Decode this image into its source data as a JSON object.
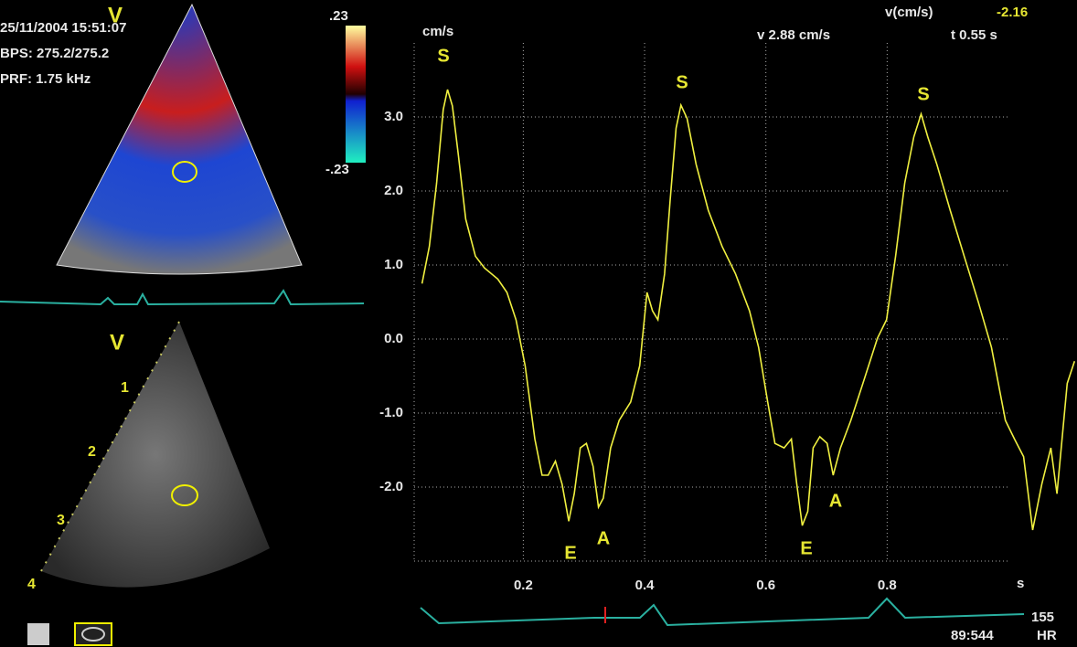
{
  "header": {
    "date": "25/11/2004 15:51:07",
    "bps": "BPS: 275.2/275.2",
    "prf": "PRF: 1.75 kHz",
    "view_top": "V",
    "scale_max": ".23",
    "scale_min": "-.23",
    "view_bottom": "V",
    "depth_labels": [
      "1",
      "2",
      "3",
      "4"
    ]
  },
  "readout": {
    "v_label": "v(cm/s)",
    "v_value": "-2.16",
    "v": "v 2.88 cm/s",
    "t": "t 0.55 s"
  },
  "chart_data": {
    "type": "line",
    "y_label": "cm/s",
    "x_label": "s",
    "x": [
      0.033,
      0.045,
      0.057,
      0.068,
      0.075,
      0.083,
      0.093,
      0.105,
      0.121,
      0.136,
      0.158,
      0.173,
      0.188,
      0.203,
      0.219,
      0.231,
      0.241,
      0.253,
      0.264,
      0.275,
      0.284,
      0.294,
      0.304,
      0.315,
      0.324,
      0.332,
      0.344,
      0.358,
      0.377,
      0.392,
      0.404,
      0.413,
      0.422,
      0.433,
      0.442,
      0.452,
      0.46,
      0.47,
      0.485,
      0.505,
      0.528,
      0.55,
      0.573,
      0.588,
      0.603,
      0.615,
      0.63,
      0.642,
      0.651,
      0.66,
      0.669,
      0.678,
      0.689,
      0.701,
      0.711,
      0.723,
      0.74,
      0.76,
      0.784,
      0.799,
      0.814,
      0.829,
      0.844,
      0.856,
      0.867,
      0.882,
      0.904,
      0.927,
      0.95,
      0.972,
      0.995,
      1.01,
      1.025,
      1.04,
      1.055,
      1.07,
      1.08,
      1.097,
      1.109
    ],
    "series": [
      {
        "color": "#f0f040",
        "values": [
          0.75,
          1.25,
          2.1,
          3.1,
          3.37,
          3.15,
          2.48,
          1.62,
          1.12,
          0.96,
          0.81,
          0.63,
          0.26,
          -0.36,
          -1.35,
          -1.84,
          -1.84,
          -1.65,
          -1.96,
          -2.46,
          -2.09,
          -1.47,
          -1.41,
          -1.72,
          -2.27,
          -2.15,
          -1.47,
          -1.1,
          -0.85,
          -0.36,
          0.63,
          0.38,
          0.26,
          0.88,
          1.86,
          2.85,
          3.16,
          2.98,
          2.36,
          1.74,
          1.25,
          0.88,
          0.38,
          -0.11,
          -0.85,
          -1.41,
          -1.47,
          -1.35,
          -1.96,
          -2.52,
          -2.33,
          -1.47,
          -1.32,
          -1.41,
          -1.84,
          -1.47,
          -1.1,
          -0.6,
          0.01,
          0.26,
          1.12,
          2.11,
          2.73,
          3.04,
          2.73,
          2.36,
          1.74,
          1.12,
          0.51,
          -0.11,
          -1.1,
          -1.35,
          -1.59,
          -2.58,
          -1.96,
          -1.47,
          -2.09,
          -0.6,
          -0.3
        ]
      }
    ],
    "xlim": [
      0.02,
      1.0
    ],
    "ylim": [
      -3,
      4
    ],
    "xticks": [
      0.2,
      0.4,
      0.6,
      0.8
    ],
    "yticks": [
      {
        "value": -2,
        "label": "-2.0"
      },
      {
        "value": -1,
        "label": "-1.0"
      },
      {
        "value": 0,
        "label": "0.0"
      },
      {
        "value": 1,
        "label": "1.0"
      },
      {
        "value": 2,
        "label": "2.0"
      },
      {
        "value": 3,
        "label": "3.0"
      }
    ],
    "grid": true,
    "annotations": [
      "S",
      "S",
      "S",
      "E",
      "A",
      "E",
      "A"
    ]
  },
  "footer": {
    "hr": "155",
    "hr_label": "HR",
    "frame": "89:544"
  }
}
